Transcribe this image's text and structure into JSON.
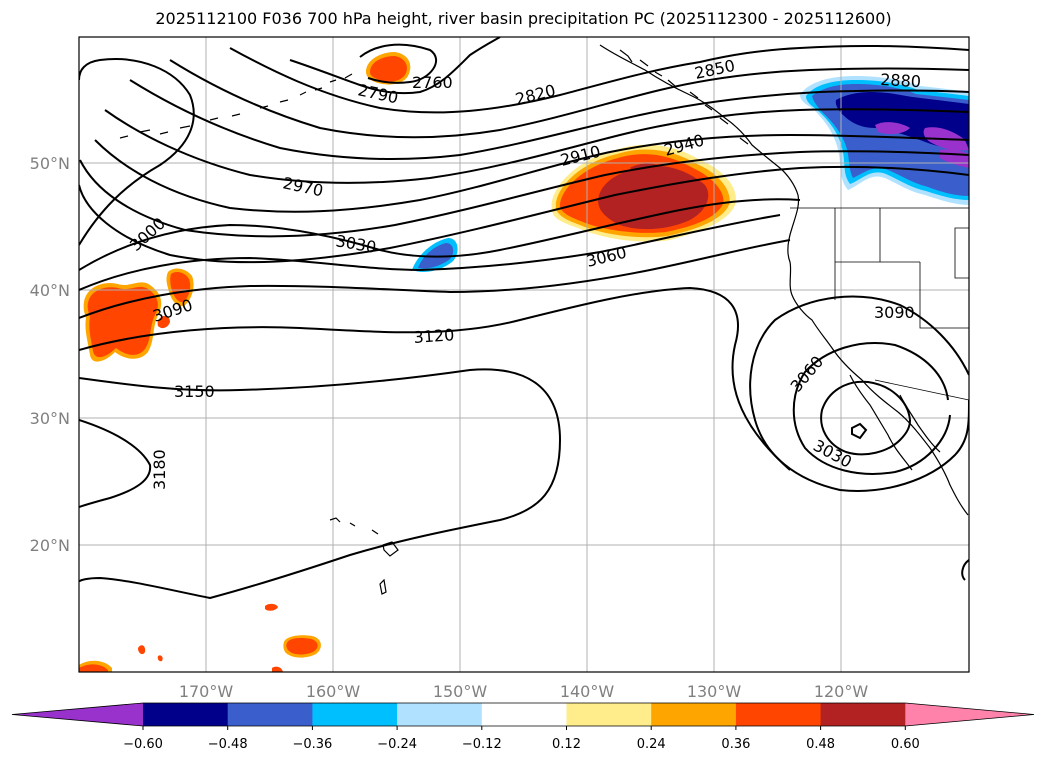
{
  "title": "2025112100 F036 700 hPa height, river basin precipitation PC (2025112300 - 2025112600)",
  "map": {
    "lat_labels": [
      "50°N",
      "40°N",
      "30°N",
      "20°N"
    ],
    "lon_labels": [
      "170°W",
      "160°W",
      "150°W",
      "140°W",
      "130°W",
      "120°W"
    ],
    "contour_labels": [
      "2760",
      "2790",
      "2820",
      "2850",
      "2880",
      "2910",
      "2940",
      "2970",
      "3000",
      "3030",
      "3060",
      "3090",
      "3120",
      "3150",
      "3180",
      "3090",
      "3060",
      "3030"
    ]
  },
  "colorbar": {
    "ticks": [
      "−0.60",
      "−0.48",
      "−0.36",
      "−0.24",
      "−0.12",
      "0.12",
      "0.24",
      "0.36",
      "0.48",
      "0.60"
    ],
    "colors": [
      "#9932cc",
      "#00008b",
      "#3a5fcd",
      "#00bfff",
      "#b0e2ff",
      "#ffffff",
      "#ffec8b",
      "#ffa500",
      "#ff4500",
      "#b22222",
      "#ff82ab"
    ]
  }
}
